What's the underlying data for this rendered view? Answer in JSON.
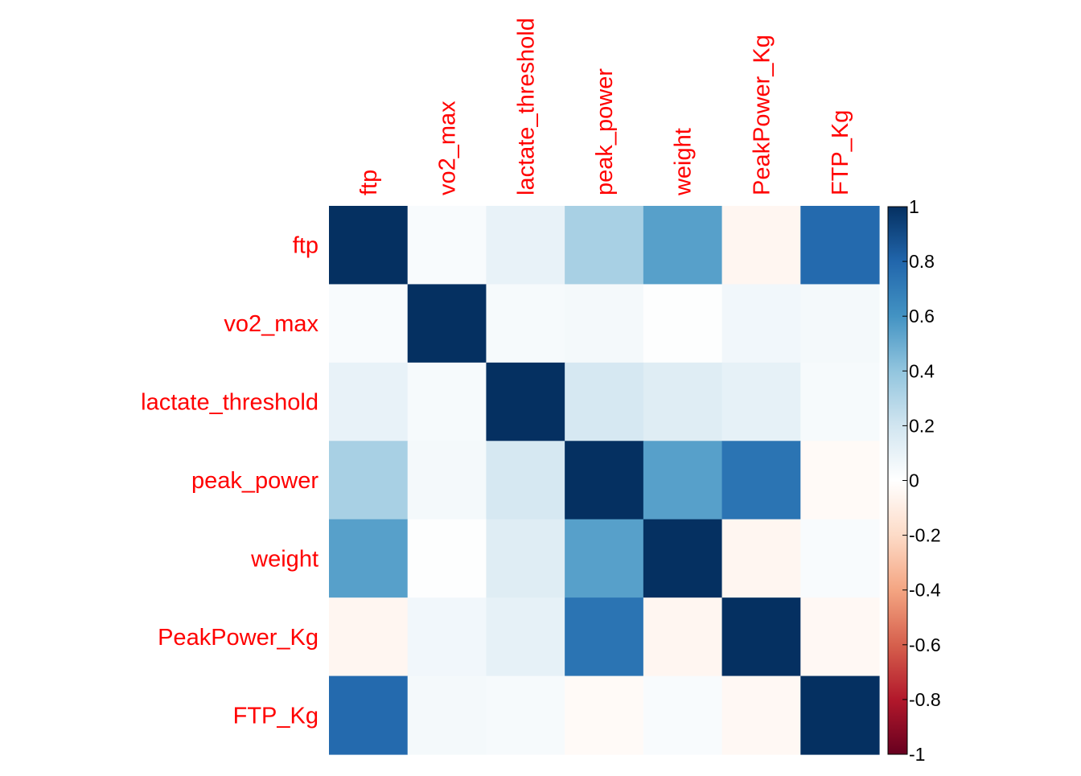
{
  "chart_data": {
    "type": "heatmap",
    "title": "",
    "variables": [
      "ftp",
      "vo2_max",
      "lactate_threshold",
      "peak_power",
      "weight",
      "PeakPower_Kg",
      "FTP_Kg"
    ],
    "matrix": [
      [
        1.0,
        0.03,
        0.1,
        0.33,
        0.55,
        -0.05,
        0.78
      ],
      [
        0.03,
        1.0,
        0.04,
        0.05,
        0.01,
        0.06,
        0.05
      ],
      [
        0.1,
        0.04,
        1.0,
        0.18,
        0.14,
        0.11,
        0.04
      ],
      [
        0.33,
        0.05,
        0.18,
        1.0,
        0.55,
        0.74,
        -0.03
      ],
      [
        0.55,
        0.01,
        0.14,
        0.55,
        1.0,
        -0.05,
        0.03
      ],
      [
        -0.05,
        0.06,
        0.11,
        0.74,
        -0.05,
        1.0,
        -0.04
      ],
      [
        0.78,
        0.05,
        0.04,
        -0.03,
        0.03,
        -0.04,
        1.0
      ]
    ],
    "color_scale": {
      "min": -1,
      "max": 1,
      "stops": [
        "#67001F",
        "#B2182B",
        "#D6604D",
        "#F4A582",
        "#FDDBC7",
        "#FFFFFF",
        "#D1E5F0",
        "#92C5DE",
        "#4393C3",
        "#2166AC",
        "#053061"
      ]
    },
    "legend_ticks": [
      "1",
      "0.8",
      "0.6",
      "0.4",
      "0.2",
      "0",
      "-0.2",
      "-0.4",
      "-0.6",
      "-0.8",
      "-1"
    ],
    "label_color": "#FF0000",
    "tick_label_color": "#000000"
  }
}
